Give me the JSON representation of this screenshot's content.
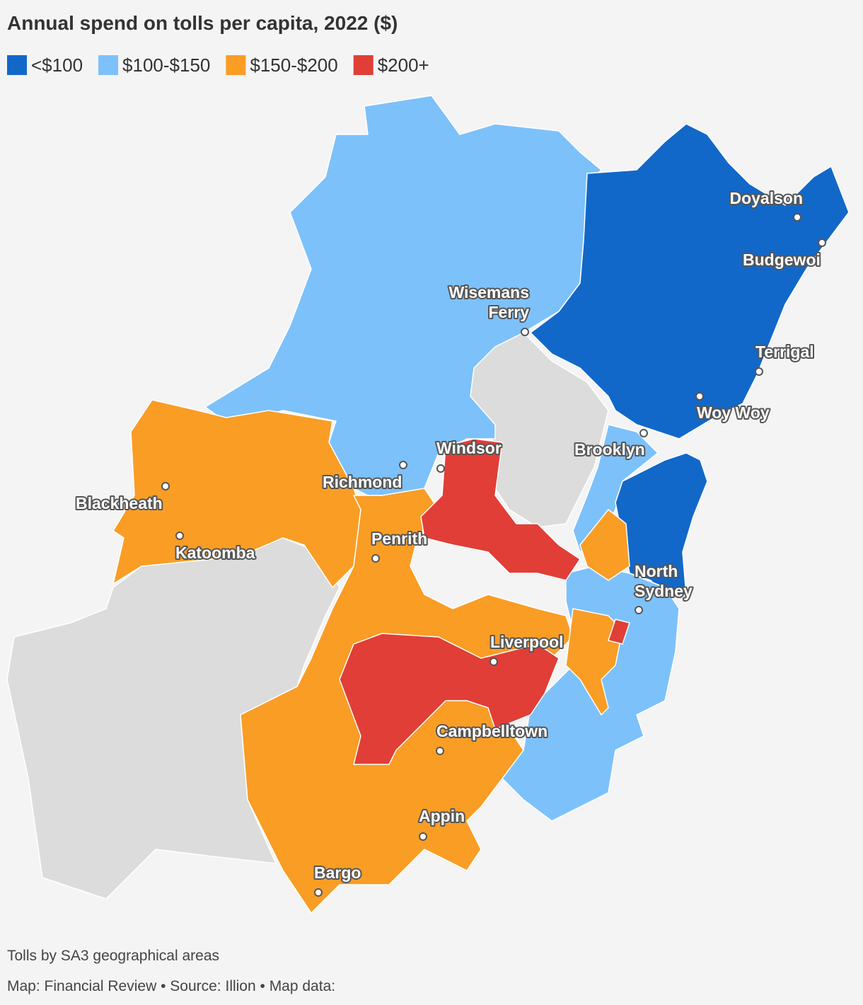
{
  "header": {
    "title": "Annual spend on tolls per capita, 2022 ($)"
  },
  "legend": [
    {
      "label": "<$100",
      "color": "#1268c8"
    },
    {
      "label": "$100-$150",
      "color": "#7dc1fa"
    },
    {
      "label": "$150-$200",
      "color": "#f99d25"
    },
    {
      "label": "$200+",
      "color": "#e03e37"
    }
  ],
  "places": [
    {
      "lines": [
        "Doyalson"
      ]
    },
    {
      "lines": [
        "Budgewoi"
      ]
    },
    {
      "lines": [
        "Wisemans",
        "Ferry"
      ]
    },
    {
      "lines": [
        "Terrigal"
      ]
    },
    {
      "lines": [
        "Woy Woy"
      ]
    },
    {
      "lines": [
        "Brooklyn"
      ]
    },
    {
      "lines": [
        "Windsor"
      ]
    },
    {
      "lines": [
        "Richmond"
      ]
    },
    {
      "lines": [
        "Blackheath"
      ]
    },
    {
      "lines": [
        "Katoomba"
      ]
    },
    {
      "lines": [
        "Penrith"
      ]
    },
    {
      "lines": [
        "North",
        "Sydney"
      ]
    },
    {
      "lines": [
        "Liverpool"
      ]
    },
    {
      "lines": [
        "Campbelltown"
      ]
    },
    {
      "lines": [
        "Appin"
      ]
    },
    {
      "lines": [
        "Bargo"
      ]
    }
  ],
  "footer": {
    "note": "Tolls by SA3 geographical areas",
    "credit": "Map: Financial Review • Source: Illion • Map data:"
  }
}
